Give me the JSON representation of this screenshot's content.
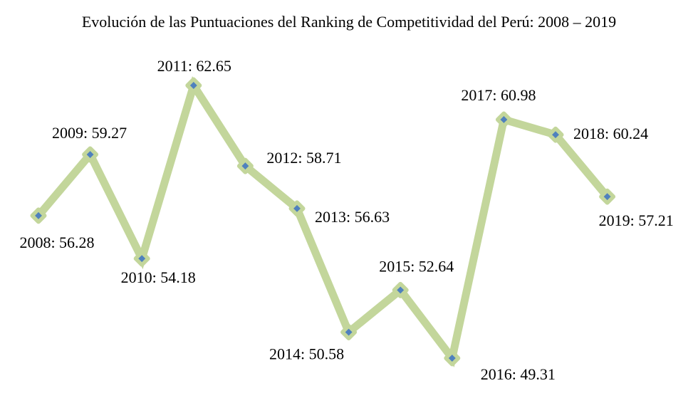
{
  "chart_data": {
    "type": "line",
    "title": "Evolución de las Puntuaciones del Ranking de Competitividad del Perú: 2008 – 2019",
    "xlabel": "",
    "ylabel": "",
    "x": [
      2008,
      2009,
      2010,
      2011,
      2012,
      2013,
      2014,
      2015,
      2016,
      2017,
      2018,
      2019
    ],
    "values": [
      56.28,
      59.27,
      54.18,
      62.65,
      58.71,
      56.63,
      50.58,
      52.64,
      49.31,
      60.98,
      60.24,
      57.21
    ],
    "labels": [
      "2008: 56.28",
      "2009: 59.27",
      "2010: 54.18",
      "2011: 62.65",
      "2012: 58.71",
      "2013: 56.63",
      "2014: 50.58",
      "2015: 52.64",
      "2016: 49.31",
      "2017: 60.98",
      "2018: 60.24",
      "2019: 57.21"
    ],
    "grid": false,
    "axes_visible": false,
    "legend": "none",
    "colors": {
      "line": "#c3d69b",
      "marker_fill": "#4f81bd",
      "marker_border": "#c3d69b"
    }
  }
}
